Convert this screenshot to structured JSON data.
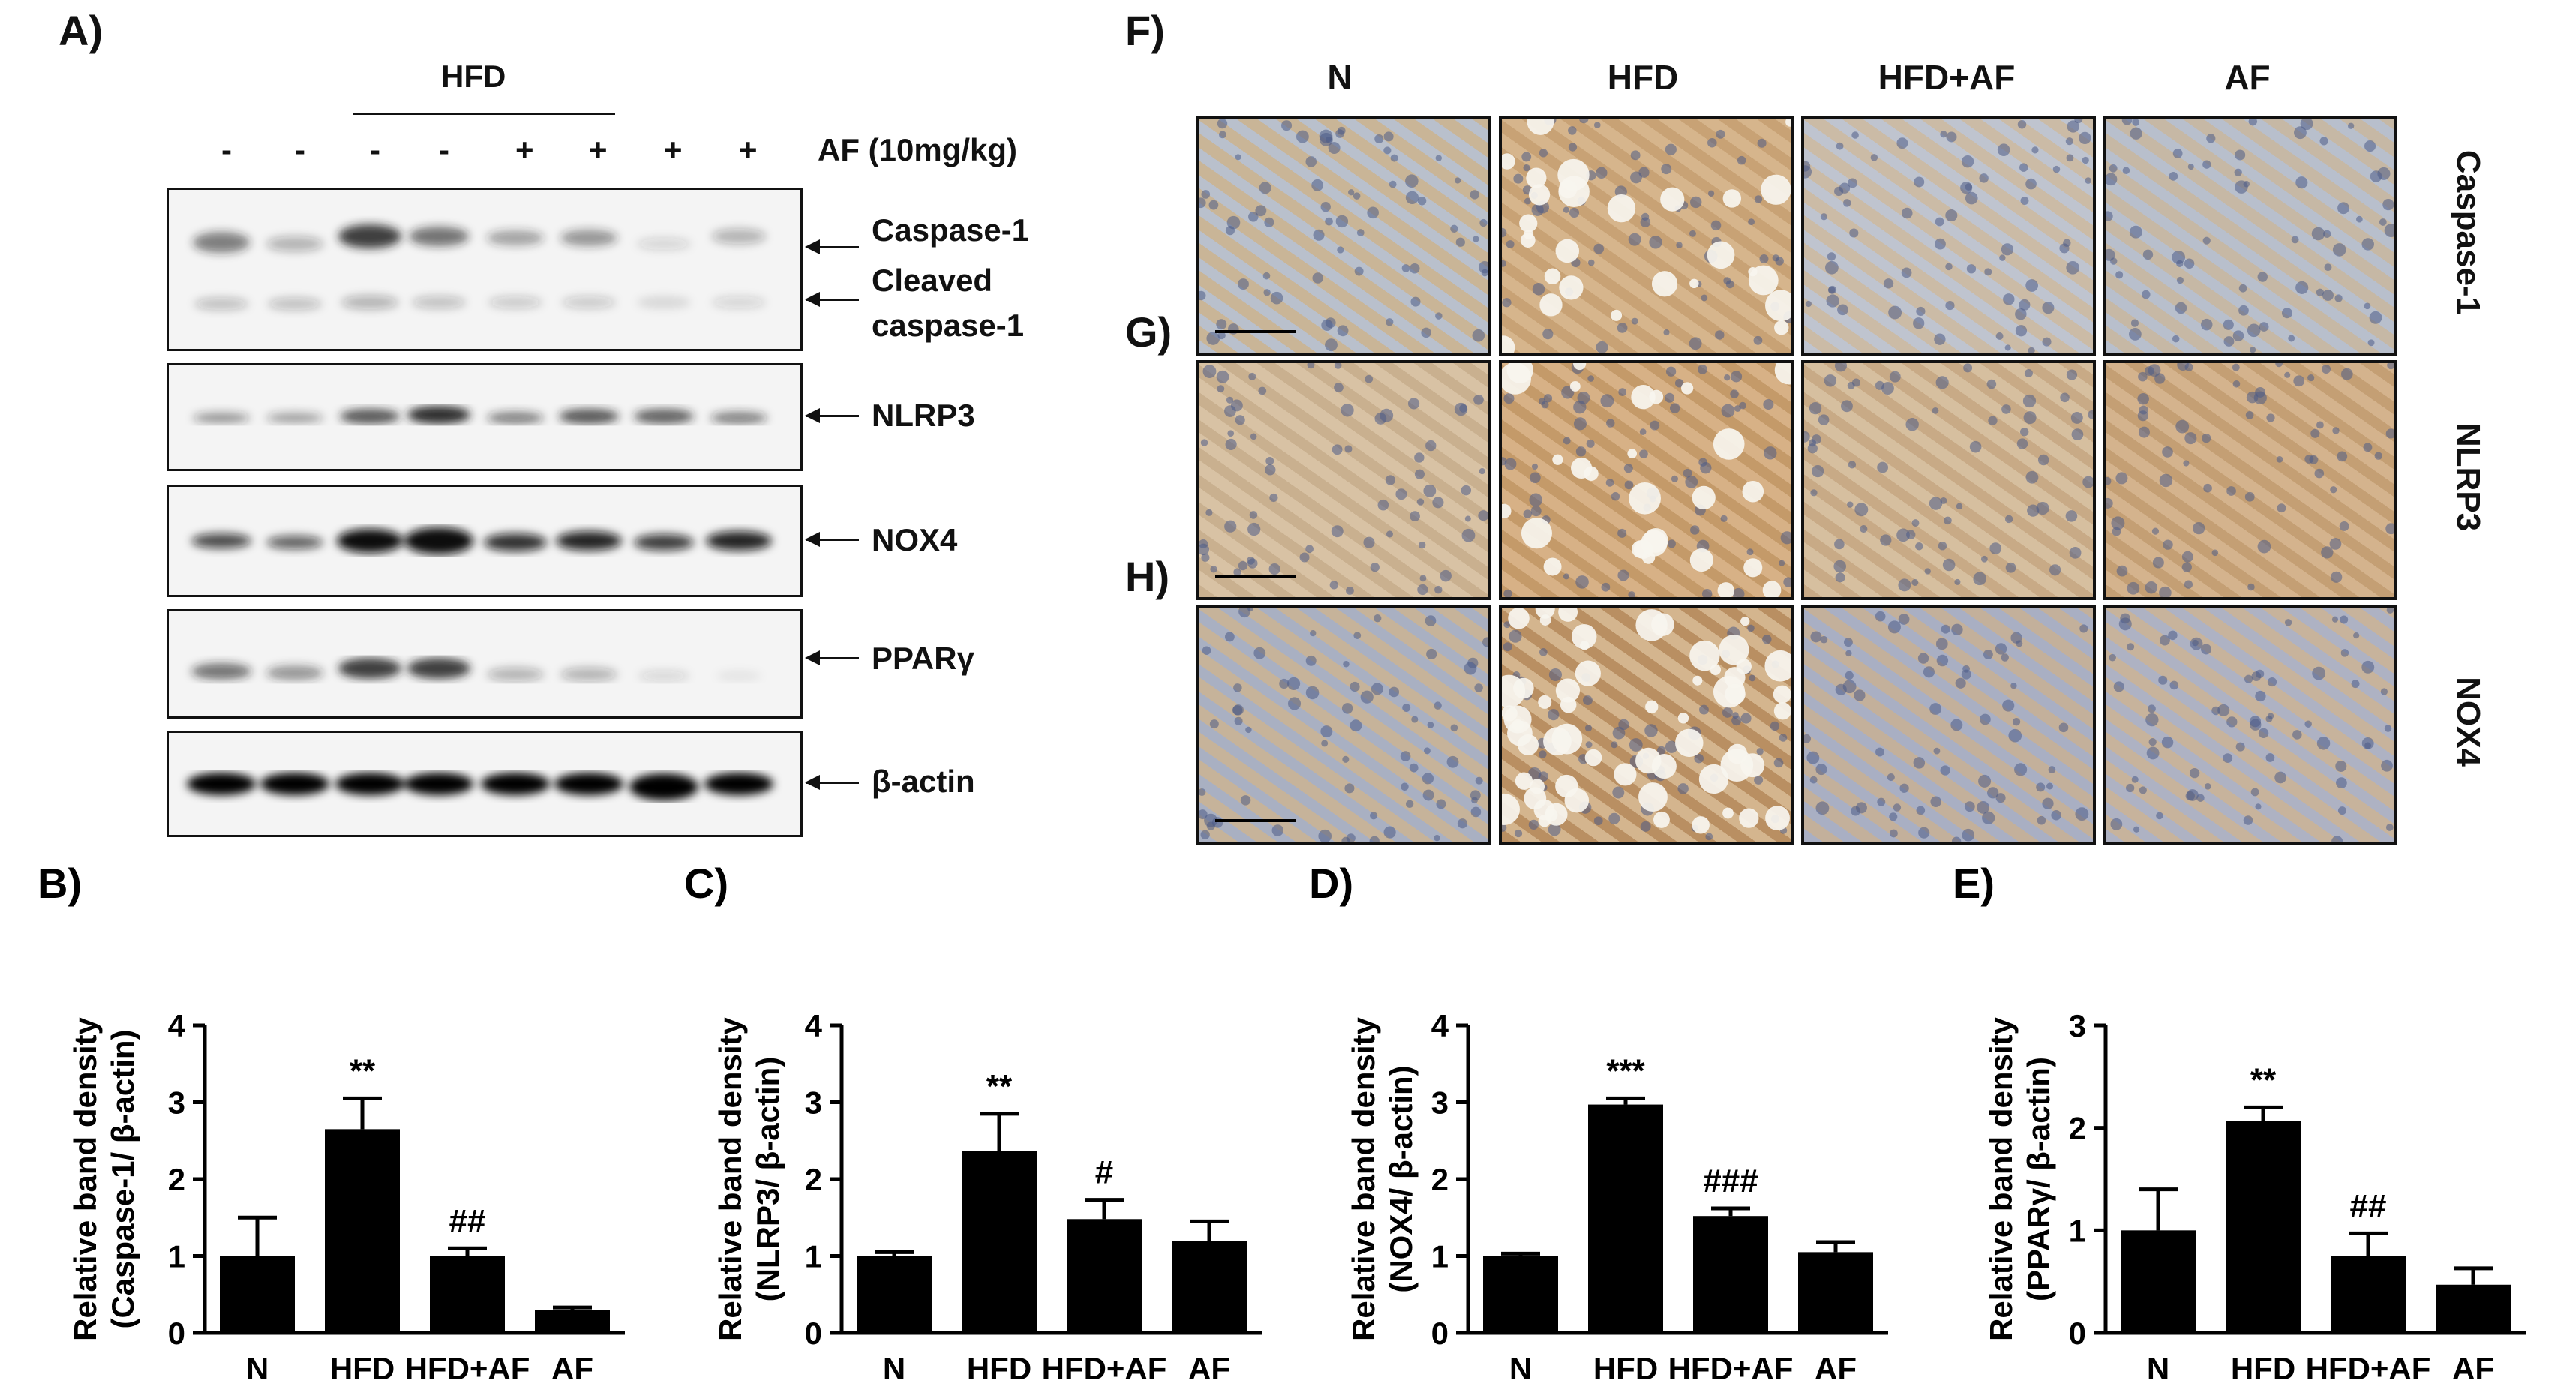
{
  "panel_labels": {
    "A": "A)",
    "B": "B)",
    "C": "C)",
    "D": "D)",
    "E": "E)",
    "F": "F)",
    "G": "G)",
    "H": "H)"
  },
  "western_blot": {
    "group_label": "HFD",
    "treatment_label": "AF (10mg/kg)",
    "lane_signs": [
      "-",
      "-",
      "-",
      "-",
      "+",
      "+",
      "+",
      "+"
    ],
    "bands": [
      "Caspase-1",
      "Cleaved",
      "caspase-1",
      "NLRP3",
      "NOX4",
      "PPARγ",
      "β-actin"
    ]
  },
  "ihc": {
    "columns": [
      "N",
      "HFD",
      "HFD+AF",
      "AF"
    ],
    "rows": [
      "Caspase-1",
      "NLRP3",
      "NOX4"
    ]
  },
  "chart_data": [
    {
      "type": "bar",
      "panel": "B)",
      "categories": [
        "N",
        "HFD",
        "HFD+AF",
        "AF"
      ],
      "values": [
        1.0,
        2.65,
        1.0,
        0.3
      ],
      "errors": [
        0.5,
        0.4,
        0.1,
        0.03
      ],
      "annotations": [
        "",
        "**",
        "##",
        ""
      ],
      "ylabel_line1": "Relative band density",
      "ylabel_line2": "(Caspase-1/ β-actin)",
      "ylim": [
        0,
        4
      ],
      "yticks": [
        "0",
        "1",
        "2",
        "3",
        "4"
      ],
      "bar_color": "#000000"
    },
    {
      "type": "bar",
      "panel": "C)",
      "categories": [
        "N",
        "HFD",
        "HFD+AF",
        "AF"
      ],
      "values": [
        1.0,
        2.37,
        1.48,
        1.2
      ],
      "errors": [
        0.05,
        0.48,
        0.25,
        0.25
      ],
      "annotations": [
        "",
        "**",
        "#",
        ""
      ],
      "ylabel_line1": "Relative band density",
      "ylabel_line2": "(NLRP3/ β-actin)",
      "ylim": [
        0,
        4
      ],
      "yticks": [
        "0",
        "1",
        "2",
        "3",
        "4"
      ],
      "bar_color": "#000000"
    },
    {
      "type": "bar",
      "panel": "D)",
      "categories": [
        "N",
        "HFD",
        "HFD+AF",
        "AF"
      ],
      "values": [
        1.0,
        2.97,
        1.52,
        1.05
      ],
      "errors": [
        0.03,
        0.08,
        0.1,
        0.13
      ],
      "annotations": [
        "",
        "***",
        "###",
        ""
      ],
      "ylabel_line1": "Relative band density",
      "ylabel_line2": "(NOX4/ β-actin)",
      "ylim": [
        0,
        4
      ],
      "yticks": [
        "0",
        "1",
        "2",
        "3",
        "4"
      ],
      "bar_color": "#000000"
    },
    {
      "type": "bar",
      "panel": "E)",
      "categories": [
        "N",
        "HFD",
        "HFD+AF",
        "AF"
      ],
      "values": [
        1.0,
        2.07,
        0.75,
        0.47
      ],
      "errors": [
        0.4,
        0.13,
        0.22,
        0.16
      ],
      "annotations": [
        "",
        "**",
        "##",
        ""
      ],
      "ylabel_line1": "Relative band density",
      "ylabel_line2": "(PPARγ/ β-actin)",
      "ylim": [
        0,
        3
      ],
      "yticks": [
        "0",
        "1",
        "2",
        "3"
      ],
      "bar_color": "#000000"
    }
  ]
}
